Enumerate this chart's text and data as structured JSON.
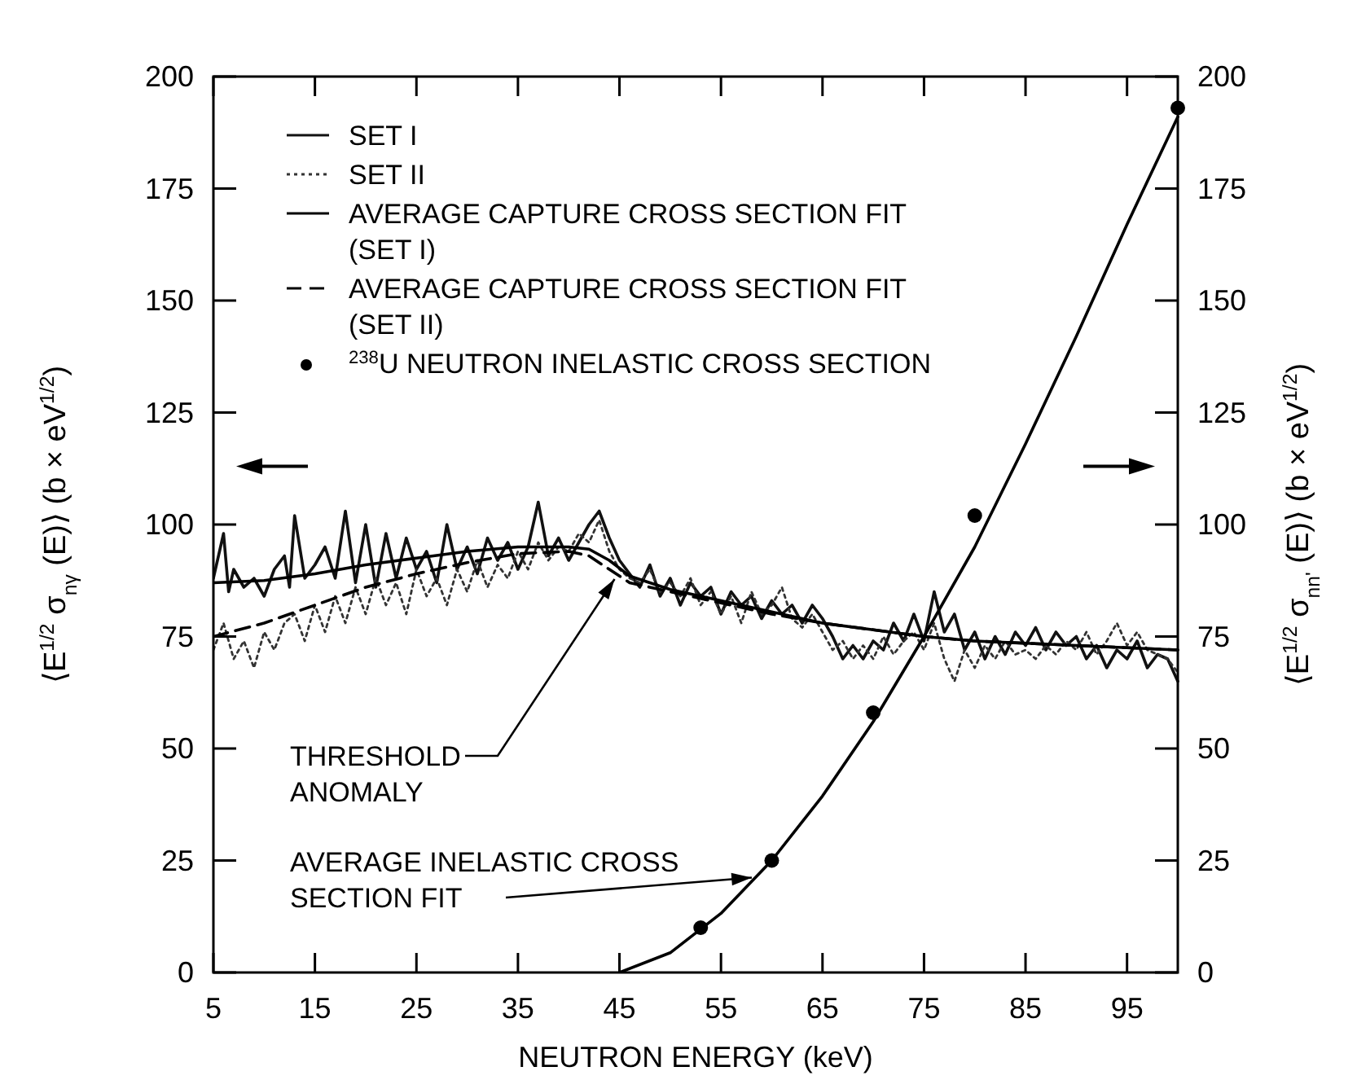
{
  "chart_data": {
    "type": "line",
    "xlabel": "NEUTRON ENERGY (keV)",
    "ylabel": "⟨E$^{1/2}$ σ$_{nγ}$ (E)⟩   (b × eV$^{1/2}$)",
    "y2label": "⟨E$^{1/2}$ σ$_{nn'}$ (E)⟩   (b × eV$^{1/2}$)",
    "xlim": [
      5,
      100
    ],
    "xticks": [
      5,
      15,
      25,
      35,
      45,
      55,
      65,
      75,
      85,
      95
    ],
    "ylim": [
      0,
      200
    ],
    "yticks": [
      0,
      25,
      50,
      75,
      100,
      125,
      150,
      175,
      200
    ],
    "y2lim": [
      0,
      200
    ],
    "y2ticks": [
      0,
      25,
      50,
      75,
      100,
      125,
      150,
      175,
      200
    ],
    "grid": false,
    "legend": "top left",
    "annotations": [
      {
        "text": "THRESHOLD ANOMALY",
        "x": 45,
        "y": 90
      },
      {
        "text": "AVERAGE INELASTIC CROSS SECTION FIT",
        "x": 59,
        "y": 23
      }
    ],
    "series": [
      {
        "name": "SET I",
        "type": "line",
        "color": "#111111",
        "line_style": "solid",
        "x": [
          5,
          6,
          6.5,
          7,
          8,
          9,
          10,
          11,
          12,
          12.5,
          13,
          14,
          15,
          16,
          17,
          18,
          19,
          20,
          21,
          22,
          23,
          24,
          25,
          26,
          27,
          28,
          29,
          30,
          31,
          32,
          33,
          34,
          35,
          36,
          37,
          38,
          39,
          40,
          41,
          42,
          43,
          44,
          45,
          46,
          47,
          48,
          49,
          50,
          51,
          52,
          53,
          54,
          55,
          56,
          57,
          58,
          59,
          60,
          61,
          62,
          63,
          64,
          65,
          66,
          67,
          68,
          69,
          70,
          71,
          72,
          73,
          74,
          75,
          76,
          77,
          78,
          79,
          80,
          81,
          82,
          83,
          84,
          85,
          86,
          87,
          88,
          89,
          90,
          91,
          92,
          93,
          94,
          95,
          96,
          97,
          98,
          99,
          100
        ],
        "values": [
          88,
          98,
          85,
          90,
          86,
          88,
          84,
          90,
          93,
          86,
          102,
          88,
          91,
          95,
          88,
          103,
          87,
          100,
          86,
          98,
          88,
          97,
          90,
          94,
          87,
          100,
          90,
          95,
          89,
          97,
          92,
          96,
          90,
          95,
          105,
          93,
          97,
          92,
          96,
          100,
          103,
          97,
          92,
          89,
          86,
          91,
          84,
          88,
          82,
          87,
          84,
          86,
          80,
          85,
          82,
          84,
          79,
          83,
          80,
          82,
          78,
          82,
          79,
          75,
          70,
          73,
          70,
          74,
          72,
          78,
          74,
          80,
          74,
          85,
          76,
          80,
          72,
          76,
          70,
          75,
          71,
          76,
          73,
          77,
          72,
          76,
          73,
          75,
          70,
          73,
          68,
          72,
          70,
          74,
          68,
          71,
          70,
          65
        ]
      },
      {
        "name": "SET II",
        "type": "line",
        "color": "#333333",
        "line_style": "dotted",
        "x": [
          5,
          6,
          7,
          8,
          9,
          10,
          11,
          12,
          13,
          14,
          15,
          16,
          17,
          18,
          19,
          20,
          21,
          22,
          23,
          24,
          25,
          26,
          27,
          28,
          29,
          30,
          31,
          32,
          33,
          34,
          35,
          36,
          37,
          38,
          39,
          40,
          41,
          42,
          43,
          44,
          45,
          46,
          47,
          48,
          49,
          50,
          51,
          52,
          53,
          54,
          55,
          56,
          57,
          58,
          59,
          60,
          61,
          62,
          63,
          64,
          65,
          66,
          67,
          68,
          69,
          70,
          71,
          72,
          73,
          74,
          75,
          76,
          77,
          78,
          79,
          80,
          81,
          82,
          83,
          84,
          85,
          86,
          87,
          88,
          89,
          90,
          91,
          92,
          93,
          94,
          95,
          96,
          97,
          98,
          99,
          100
        ],
        "values": [
          72,
          78,
          70,
          74,
          68,
          76,
          72,
          78,
          80,
          74,
          82,
          76,
          84,
          78,
          86,
          80,
          88,
          82,
          87,
          80,
          90,
          84,
          88,
          82,
          90,
          85,
          92,
          86,
          91,
          88,
          94,
          90,
          96,
          92,
          95,
          94,
          98,
          96,
          101,
          94,
          90,
          88,
          87,
          90,
          85,
          87,
          84,
          88,
          82,
          85,
          80,
          84,
          78,
          85,
          80,
          82,
          86,
          79,
          77,
          80,
          76,
          72,
          74,
          70,
          73,
          70,
          75,
          71,
          74,
          76,
          72,
          78,
          70,
          65,
          72,
          68,
          73,
          70,
          74,
          71,
          72,
          70,
          73,
          71,
          74,
          72,
          76,
          71,
          74,
          78,
          73,
          76,
          72,
          71,
          70,
          67
        ]
      },
      {
        "name": "AVERAGE CAPTURE CROSS SECTION FIT (SET I)",
        "type": "line",
        "color": "#000000",
        "line_style": "solid",
        "x": [
          5,
          10,
          15,
          20,
          25,
          30,
          35,
          40,
          42,
          44,
          46,
          50,
          55,
          60,
          65,
          70,
          75,
          80,
          85,
          90,
          95,
          100
        ],
        "values": [
          87,
          87.5,
          89,
          91,
          92.5,
          94,
          95,
          95,
          94.5,
          92,
          88.5,
          85.5,
          83,
          80.5,
          78,
          76.5,
          75,
          74,
          73.5,
          73,
          72.5,
          72
        ]
      },
      {
        "name": "AVERAGE CAPTURE CROSS SECTION FIT (SET II)",
        "type": "line",
        "color": "#000000",
        "line_style": "dashed",
        "x": [
          5,
          10,
          15,
          20,
          25,
          30,
          35,
          40,
          42,
          44,
          46,
          50,
          55,
          60,
          65,
          70,
          75,
          80,
          85,
          90,
          95,
          100
        ],
        "values": [
          75,
          78,
          82,
          86,
          89,
          91.5,
          93.5,
          94,
          93,
          90,
          87,
          85,
          82.5,
          80,
          78,
          76.5,
          75,
          74,
          73.5,
          73,
          72.5,
          72
        ]
      },
      {
        "name": "$^{238}$U NEUTRON INELASTIC CROSS SECTION",
        "type": "scatter",
        "marker": "circle",
        "color": "#000000",
        "x": [
          53,
          60,
          70,
          80,
          100
        ],
        "values": [
          10,
          25,
          58,
          102,
          193
        ]
      },
      {
        "type": "line",
        "color": "#000000",
        "line_style": "solid",
        "x": [
          45,
          50,
          55,
          60,
          65,
          70,
          75,
          80,
          85,
          90,
          95,
          100
        ],
        "values": [
          0,
          4.4,
          13.2,
          25,
          39.4,
          56,
          75,
          95,
          118,
          142,
          167,
          191
        ]
      }
    ]
  }
}
